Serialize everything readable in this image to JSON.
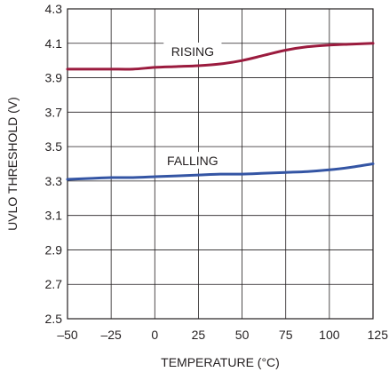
{
  "chart_data": {
    "type": "line",
    "title": "",
    "xlabel": "TEMPERATURE (°C)",
    "ylabel": "UVLO THRESHOLD (V)",
    "xlim": [
      -50,
      125
    ],
    "ylim": [
      2.5,
      4.3
    ],
    "xticks": [
      -50,
      -25,
      0,
      25,
      50,
      75,
      100,
      125
    ],
    "xtick_labels": [
      "–50",
      "–25",
      "0",
      "25",
      "50",
      "75",
      "100",
      "125"
    ],
    "yticks": [
      2.5,
      2.7,
      2.9,
      3.1,
      3.3,
      3.5,
      3.7,
      3.9,
      4.1,
      4.3
    ],
    "ytick_labels": [
      "2.5",
      "2.7",
      "2.9",
      "3.1",
      "3.3",
      "3.5",
      "3.7",
      "3.9",
      "4.1",
      "4.3"
    ],
    "grid": true,
    "series": [
      {
        "name": "RISING",
        "color": "#9b1b3e",
        "x": [
          -50,
          -37.5,
          -25,
          -12.5,
          0,
          12.5,
          25,
          37.5,
          50,
          62.5,
          75,
          87.5,
          100,
          112.5,
          125
        ],
        "y": [
          3.95,
          3.95,
          3.95,
          3.95,
          3.96,
          3.965,
          3.97,
          3.98,
          4.0,
          4.03,
          4.06,
          4.08,
          4.09,
          4.095,
          4.1
        ]
      },
      {
        "name": "FALLING",
        "color": "#3455a4",
        "x": [
          -50,
          -37.5,
          -25,
          -12.5,
          0,
          12.5,
          25,
          37.5,
          50,
          62.5,
          75,
          87.5,
          100,
          112.5,
          125
        ],
        "y": [
          3.31,
          3.315,
          3.32,
          3.32,
          3.325,
          3.33,
          3.335,
          3.34,
          3.34,
          3.345,
          3.35,
          3.355,
          3.365,
          3.38,
          3.4
        ]
      }
    ]
  }
}
